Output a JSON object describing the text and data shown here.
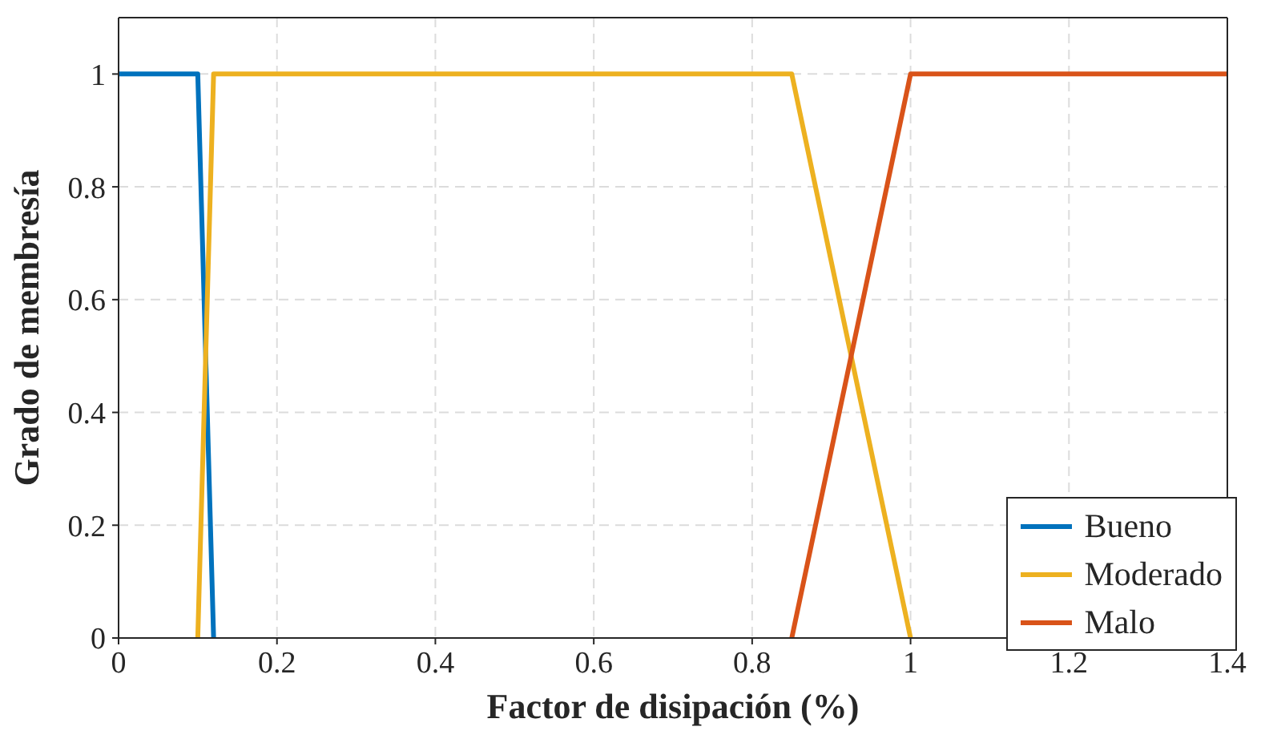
{
  "chart_data": {
    "type": "line",
    "xlabel": "Factor de disipación (%)",
    "ylabel": "Grado de membresía",
    "xlim": [
      0,
      1.4
    ],
    "xticks": [
      0,
      0.2,
      0.4,
      0.6,
      0.8,
      1,
      1.2,
      1.4
    ],
    "ylim": [
      0,
      1.1
    ],
    "yticks": [
      0,
      0.2,
      0.4,
      0.6,
      0.8,
      1
    ],
    "grid": true,
    "legend": "bottom right",
    "marker": "none",
    "line_style": "solid",
    "series": [
      {
        "name": "Bueno",
        "color": "#0072bd",
        "x": [
          0,
          0.1,
          0.12
        ],
        "values": [
          1,
          1,
          0
        ]
      },
      {
        "name": "Moderado",
        "color": "#edb120",
        "x": [
          0.1,
          0.12,
          0.85,
          1
        ],
        "values": [
          0,
          1,
          1,
          0
        ]
      },
      {
        "name": "Malo",
        "color": "#d95319",
        "x": [
          0.85,
          1,
          1.4
        ],
        "values": [
          0,
          1,
          1
        ]
      }
    ]
  }
}
